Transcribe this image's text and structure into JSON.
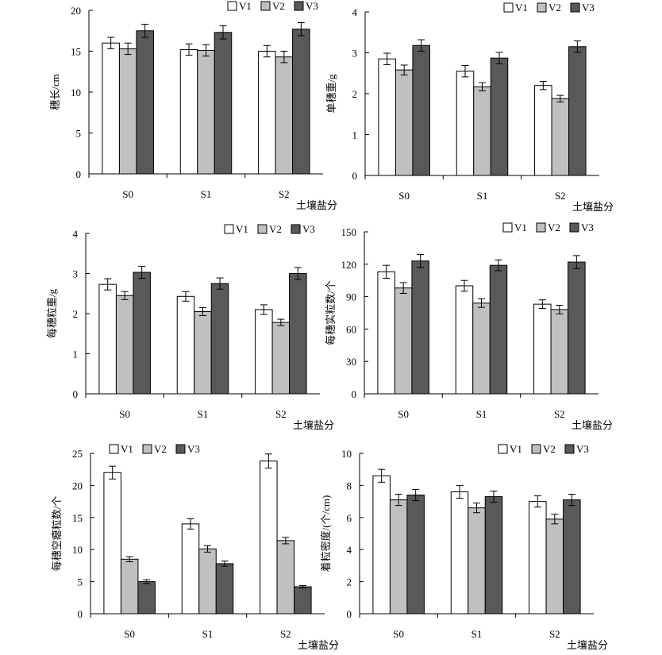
{
  "legend_labels": [
    "V1",
    "V2",
    "V3"
  ],
  "series_colors": [
    "#ffffff",
    "#c0c0c0",
    "#595959"
  ],
  "xlabel": "土壤盐分",
  "chart_data": [
    {
      "type": "bar",
      "categories": [
        "S0",
        "S1",
        "S2"
      ],
      "series": [
        {
          "name": "V1",
          "values": [
            16.0,
            15.2,
            15.0
          ],
          "errors": [
            0.7,
            0.7,
            0.7
          ]
        },
        {
          "name": "V2",
          "values": [
            15.3,
            15.1,
            14.3
          ],
          "errors": [
            0.7,
            0.7,
            0.7
          ]
        },
        {
          "name": "V3",
          "values": [
            17.5,
            17.3,
            17.7
          ],
          "errors": [
            0.8,
            0.8,
            0.8
          ]
        }
      ],
      "ylabel": "穗长/cm",
      "ylim": [
        0,
        20
      ],
      "yticks": [
        0,
        5,
        10,
        15,
        20
      ],
      "legend": "top-right",
      "grid": false
    },
    {
      "type": "bar",
      "categories": [
        "S0",
        "S1",
        "S2"
      ],
      "series": [
        {
          "name": "V1",
          "values": [
            2.85,
            2.55,
            2.2
          ],
          "errors": [
            0.14,
            0.14,
            0.1
          ]
        },
        {
          "name": "V2",
          "values": [
            2.58,
            2.17,
            1.88
          ],
          "errors": [
            0.12,
            0.1,
            0.08
          ]
        },
        {
          "name": "V3",
          "values": [
            3.18,
            2.87,
            3.15
          ],
          "errors": [
            0.14,
            0.14,
            0.14
          ]
        }
      ],
      "ylabel": "单穗重/g",
      "ylim": [
        0,
        4
      ],
      "yticks": [
        0,
        1,
        2,
        3,
        4
      ],
      "legend": "top-right",
      "grid": false
    },
    {
      "type": "bar",
      "categories": [
        "S0",
        "S1",
        "S2"
      ],
      "series": [
        {
          "name": "V1",
          "values": [
            2.73,
            2.43,
            2.1
          ],
          "errors": [
            0.14,
            0.12,
            0.12
          ]
        },
        {
          "name": "V2",
          "values": [
            2.45,
            2.05,
            1.78
          ],
          "errors": [
            0.1,
            0.1,
            0.08
          ]
        },
        {
          "name": "V3",
          "values": [
            3.03,
            2.75,
            3.0
          ],
          "errors": [
            0.15,
            0.14,
            0.15
          ]
        }
      ],
      "ylabel": "每穗粒重/g",
      "ylim": [
        0,
        4
      ],
      "yticks": [
        0,
        1,
        2,
        3,
        4
      ],
      "legend": "top-right",
      "grid": false
    },
    {
      "type": "bar",
      "categories": [
        "S0",
        "S1",
        "S2"
      ],
      "series": [
        {
          "name": "V1",
          "values": [
            113,
            100,
            83
          ],
          "errors": [
            6,
            5,
            4
          ]
        },
        {
          "name": "V2",
          "values": [
            98,
            84,
            78
          ],
          "errors": [
            5,
            4,
            4
          ]
        },
        {
          "name": "V3",
          "values": [
            123,
            119,
            122
          ],
          "errors": [
            6,
            5,
            6
          ]
        }
      ],
      "ylabel": "每穗实粒数/个",
      "ylim": [
        0,
        150
      ],
      "yticks": [
        0,
        30,
        60,
        90,
        120,
        150
      ],
      "legend": "top-right",
      "grid": false
    },
    {
      "type": "bar",
      "categories": [
        "S0",
        "S1",
        "S2"
      ],
      "series": [
        {
          "name": "V1",
          "values": [
            22.0,
            14.0,
            23.8
          ],
          "errors": [
            1.0,
            0.8,
            1.1
          ]
        },
        {
          "name": "V2",
          "values": [
            8.5,
            10.1,
            11.4
          ],
          "errors": [
            0.4,
            0.5,
            0.5
          ]
        },
        {
          "name": "V3",
          "values": [
            5.0,
            7.8,
            4.2
          ],
          "errors": [
            0.3,
            0.4,
            0.2
          ]
        }
      ],
      "ylabel": "每穗空瘪粒数/个",
      "ylim": [
        0,
        25
      ],
      "yticks": [
        0,
        5,
        10,
        15,
        20,
        25
      ],
      "legend": "top-left",
      "grid": false
    },
    {
      "type": "bar",
      "categories": [
        "S0",
        "S1",
        "S2"
      ],
      "series": [
        {
          "name": "V1",
          "values": [
            8.6,
            7.6,
            7.0
          ],
          "errors": [
            0.4,
            0.4,
            0.35
          ]
        },
        {
          "name": "V2",
          "values": [
            7.1,
            6.6,
            5.9
          ],
          "errors": [
            0.35,
            0.3,
            0.3
          ]
        },
        {
          "name": "V3",
          "values": [
            7.4,
            7.3,
            7.1
          ],
          "errors": [
            0.35,
            0.35,
            0.35
          ]
        }
      ],
      "ylabel": "着粒密度/(个/cm)",
      "ylim": [
        0,
        10
      ],
      "yticks": [
        0,
        2,
        4,
        6,
        8,
        10
      ],
      "legend": "top-right",
      "grid": false
    }
  ]
}
